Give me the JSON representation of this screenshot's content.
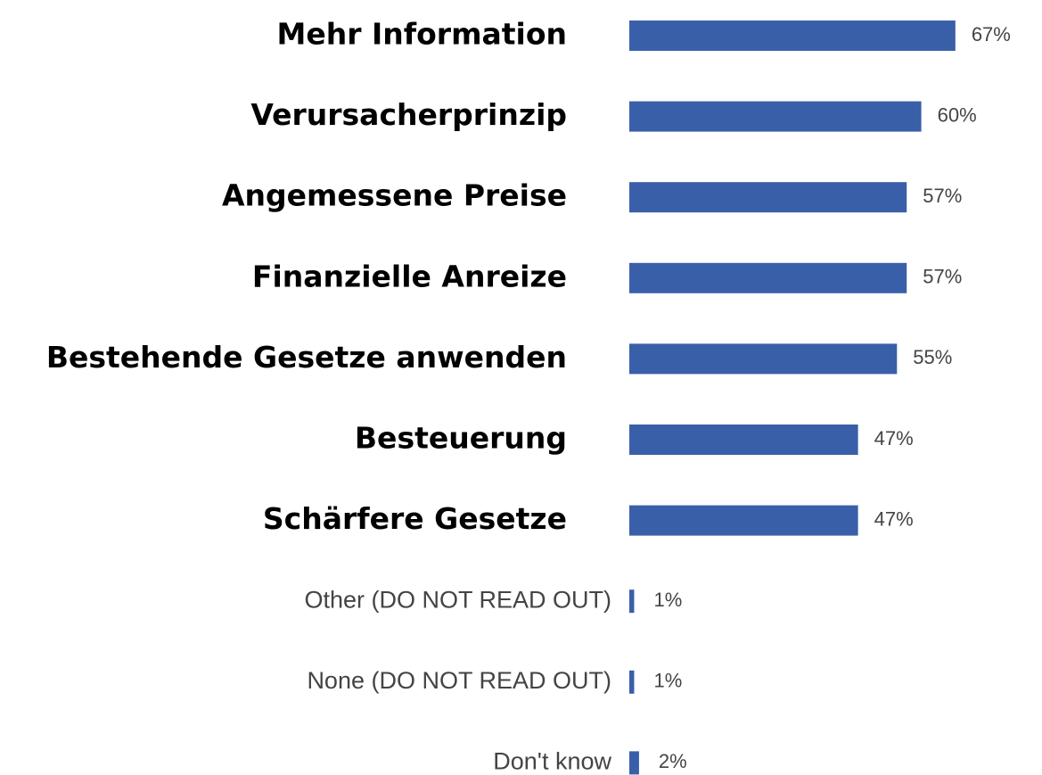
{
  "chart_data": {
    "type": "bar",
    "orientation": "horizontal",
    "categories": [
      "Mehr Information",
      "Verursacherprinzip",
      "Angemessene Preise",
      "Finanzielle Anreize",
      "Bestehende Gesetze anwenden",
      "Besteuerung",
      "Schärfere Gesetze",
      "Other (DO NOT READ OUT)",
      "None (DO NOT READ OUT)",
      "Don't know"
    ],
    "values": [
      67,
      60,
      57,
      57,
      55,
      47,
      47,
      1,
      1,
      2
    ],
    "value_labels": [
      "67%",
      "60%",
      "57%",
      "57%",
      "55%",
      "47%",
      "47%",
      "1%",
      "1%",
      "2%"
    ],
    "color": "#3a5fa9"
  }
}
